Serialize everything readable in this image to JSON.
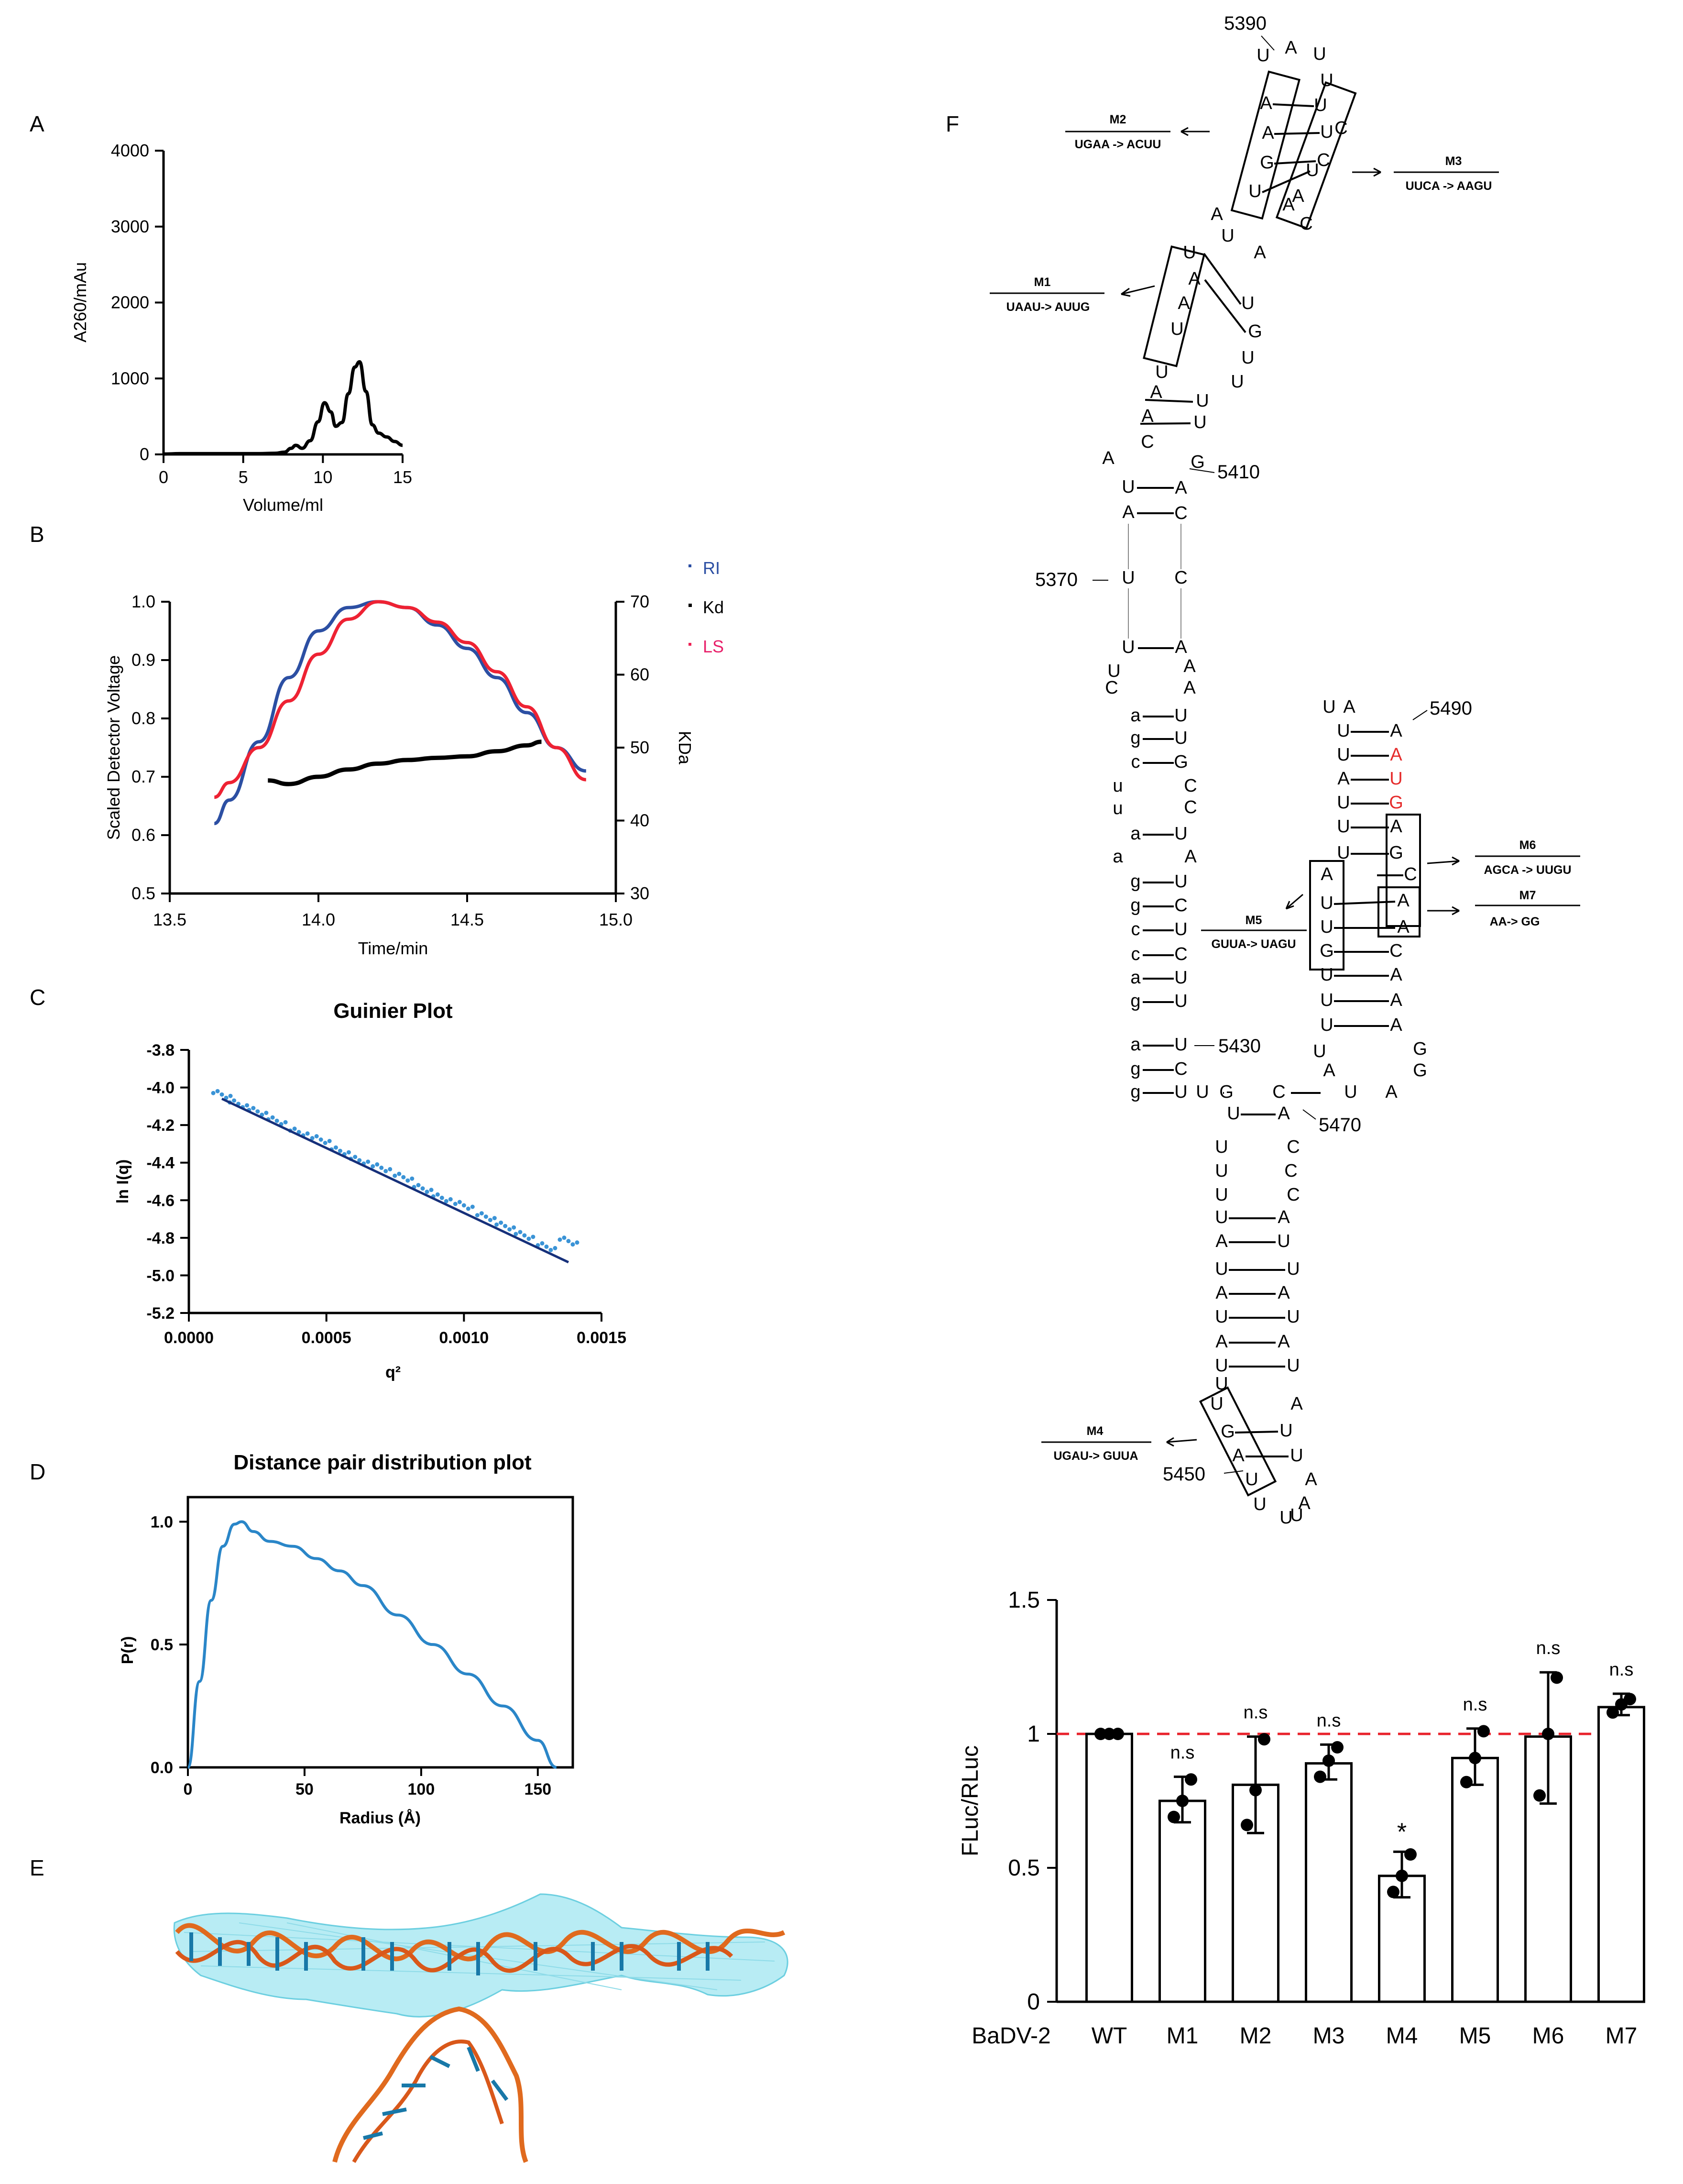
{
  "panels": {
    "A": {
      "letter": "A"
    },
    "B": {
      "letter": "B"
    },
    "C": {
      "letter": "C"
    },
    "D": {
      "letter": "D"
    },
    "E": {
      "letter": "E"
    },
    "F": {
      "letter": "F"
    }
  },
  "chart_data": [
    {
      "id": "A",
      "type": "line",
      "title": "",
      "xlabel": "Volume/ml",
      "ylabel": "A260/mAu",
      "xlim": [
        0,
        15
      ],
      "ylim": [
        0,
        4000
      ],
      "xticks": [
        "0",
        "5",
        "10",
        "15"
      ],
      "yticks": [
        "0",
        "1000",
        "2000",
        "3000",
        "4000"
      ],
      "x": [
        0,
        1,
        2,
        3,
        4,
        5,
        6,
        7,
        7.6,
        8.0,
        8.3,
        8.7,
        9.2,
        9.7,
        10.1,
        10.5,
        10.8,
        11.2,
        11.6,
        12.0,
        12.3,
        12.7,
        13.1,
        13.5,
        14.0,
        14.5,
        15.0
      ],
      "values": [
        5,
        10,
        10,
        10,
        10,
        10,
        10,
        15,
        30,
        80,
        120,
        80,
        180,
        430,
        680,
        560,
        370,
        420,
        800,
        1150,
        1220,
        830,
        390,
        280,
        230,
        170,
        120
      ],
      "series_name": "A260"
    },
    {
      "id": "B",
      "type": "line",
      "xlabel": "Time/min",
      "ylabel": "Scaled Detector Voltage",
      "y2label": "KDa",
      "xlim": [
        13.5,
        15.0
      ],
      "ylim": [
        0.5,
        1.0
      ],
      "y2lim": [
        30,
        70
      ],
      "xticks": [
        "13.5",
        "14.0",
        "14.5",
        "15.0"
      ],
      "yticks": [
        "0.5",
        "0.6",
        "0.7",
        "0.8",
        "0.9",
        "1.0"
      ],
      "y2ticks": [
        "30",
        "40",
        "50",
        "60",
        "70"
      ],
      "legend": [
        "RI",
        "Kd",
        "LS"
      ],
      "series": [
        {
          "name": "RI",
          "color": "#2c4fa3",
          "x": [
            13.65,
            13.7,
            13.8,
            13.9,
            14.0,
            14.1,
            14.2,
            14.3,
            14.4,
            14.5,
            14.6,
            14.7,
            14.8,
            14.9
          ],
          "values": [
            0.62,
            0.66,
            0.76,
            0.87,
            0.95,
            0.99,
            1.0,
            0.99,
            0.96,
            0.92,
            0.87,
            0.81,
            0.75,
            0.71
          ]
        },
        {
          "name": "LS",
          "color": "#ee2233",
          "x": [
            13.65,
            13.7,
            13.8,
            13.9,
            14.0,
            14.1,
            14.2,
            14.3,
            14.4,
            14.5,
            14.6,
            14.7,
            14.8,
            14.9
          ],
          "values": [
            0.665,
            0.69,
            0.75,
            0.83,
            0.91,
            0.97,
            1.0,
            0.99,
            0.965,
            0.93,
            0.88,
            0.82,
            0.75,
            0.695
          ]
        },
        {
          "name": "Kd",
          "color": "#000000",
          "axis": "y2",
          "x": [
            13.83,
            13.9,
            14.0,
            14.1,
            14.2,
            14.3,
            14.4,
            14.5,
            14.6,
            14.7,
            14.75
          ],
          "values": [
            45.5,
            45.0,
            46.0,
            47.0,
            47.8,
            48.3,
            48.6,
            48.8,
            49.5,
            50.3,
            50.8
          ]
        }
      ]
    },
    {
      "id": "C",
      "type": "scatter",
      "title": "Guinier Plot",
      "xlabel": "q²",
      "ylabel": "ln I(q)",
      "xlim": [
        0,
        0.0015
      ],
      "ylim": [
        -5.2,
        -3.8
      ],
      "xticks": [
        "0.0000",
        "0.0005",
        "0.0010",
        "0.0015"
      ],
      "yticks": [
        "-3.8",
        "-4.0",
        "-4.2",
        "-4.4",
        "-4.6",
        "-4.8",
        "-5.0",
        "-5.2"
      ],
      "fit": {
        "x": [
          0.00012,
          0.00138
        ],
        "values": [
          -4.06,
          -4.93
        ]
      },
      "points_x": [
        0.00012,
        0.00018,
        0.00025,
        0.00032,
        0.0004,
        0.00048,
        0.00055,
        0.00062,
        0.0007,
        0.00078,
        0.00085,
        0.00092,
        0.001,
        0.00108,
        0.00115,
        0.00122,
        0.0013,
        0.00138
      ],
      "points_y": [
        -4.05,
        -4.1,
        -4.14,
        -4.19,
        -4.25,
        -4.29,
        -4.35,
        -4.4,
        -4.44,
        -4.49,
        -4.55,
        -4.6,
        -4.64,
        -4.7,
        -4.75,
        -4.8,
        -4.86,
        -4.83
      ]
    },
    {
      "id": "D",
      "type": "line",
      "title": "Distance pair distribution plot",
      "xlabel": "Radius (Å)",
      "ylabel": "P(r)",
      "xlim": [
        0,
        165
      ],
      "ylim": [
        0,
        1.1
      ],
      "xticks": [
        "0",
        "50",
        "100",
        "150"
      ],
      "yticks": [
        "0.0",
        "0.5",
        "1.0"
      ],
      "x": [
        0,
        5,
        10,
        15,
        20,
        23,
        28,
        35,
        45,
        55,
        65,
        75,
        90,
        105,
        120,
        135,
        150,
        158
      ],
      "values": [
        0.0,
        0.35,
        0.68,
        0.9,
        0.99,
        1.0,
        0.96,
        0.92,
        0.9,
        0.85,
        0.8,
        0.74,
        0.62,
        0.5,
        0.38,
        0.25,
        0.11,
        0.0
      ]
    },
    {
      "id": "F-bar",
      "type": "bar",
      "xlabel": "BaDV-2",
      "ylabel": "FLuc/RLuc",
      "ylim": [
        0,
        1.5
      ],
      "yticks": [
        "0",
        "0.5",
        "1",
        "1.5"
      ],
      "categories": [
        "WT",
        "M1",
        "M2",
        "M3",
        "M4",
        "M5",
        "M6",
        "M7"
      ],
      "values": [
        1.0,
        0.75,
        0.81,
        0.89,
        0.47,
        0.91,
        0.99,
        1.1
      ],
      "error_low": [
        1.0,
        0.67,
        0.63,
        0.83,
        0.39,
        0.81,
        0.74,
        1.07
      ],
      "error_high": [
        1.0,
        0.84,
        0.99,
        0.96,
        0.56,
        1.02,
        1.23,
        1.15
      ],
      "points": [
        [
          1.0,
          1.0,
          1.0
        ],
        [
          0.69,
          0.75,
          0.83
        ],
        [
          0.66,
          0.79,
          0.98
        ],
        [
          0.84,
          0.9,
          0.95
        ],
        [
          0.41,
          0.47,
          0.55
        ],
        [
          0.82,
          0.91,
          1.01
        ],
        [
          0.77,
          1.0,
          1.21
        ],
        [
          1.08,
          1.11,
          1.13
        ]
      ],
      "significance": [
        "",
        "n.s",
        "n.s",
        "n.s",
        "*",
        "n.s",
        "n.s",
        "n.s"
      ],
      "reference_line": 1.0,
      "reference_color": "#e8202a"
    }
  ],
  "rna_structure": {
    "positions": [
      "5390",
      "5410",
      "5370",
      "5490",
      "5430",
      "5470",
      "5450"
    ],
    "mutations": [
      {
        "name": "M1",
        "change": "UAAU-> AUUG"
      },
      {
        "name": "M2",
        "change": "UGAA -> ACUU"
      },
      {
        "name": "M3",
        "change": "UUCA -> AAGU"
      },
      {
        "name": "M4",
        "change": "UGAU-> GUUA"
      },
      {
        "name": "M5",
        "change": "GUUA-> UAGU"
      },
      {
        "name": "M6",
        "change": "AGCA -> UUGU"
      },
      {
        "name": "M7",
        "change": "AA-> GG"
      }
    ]
  }
}
